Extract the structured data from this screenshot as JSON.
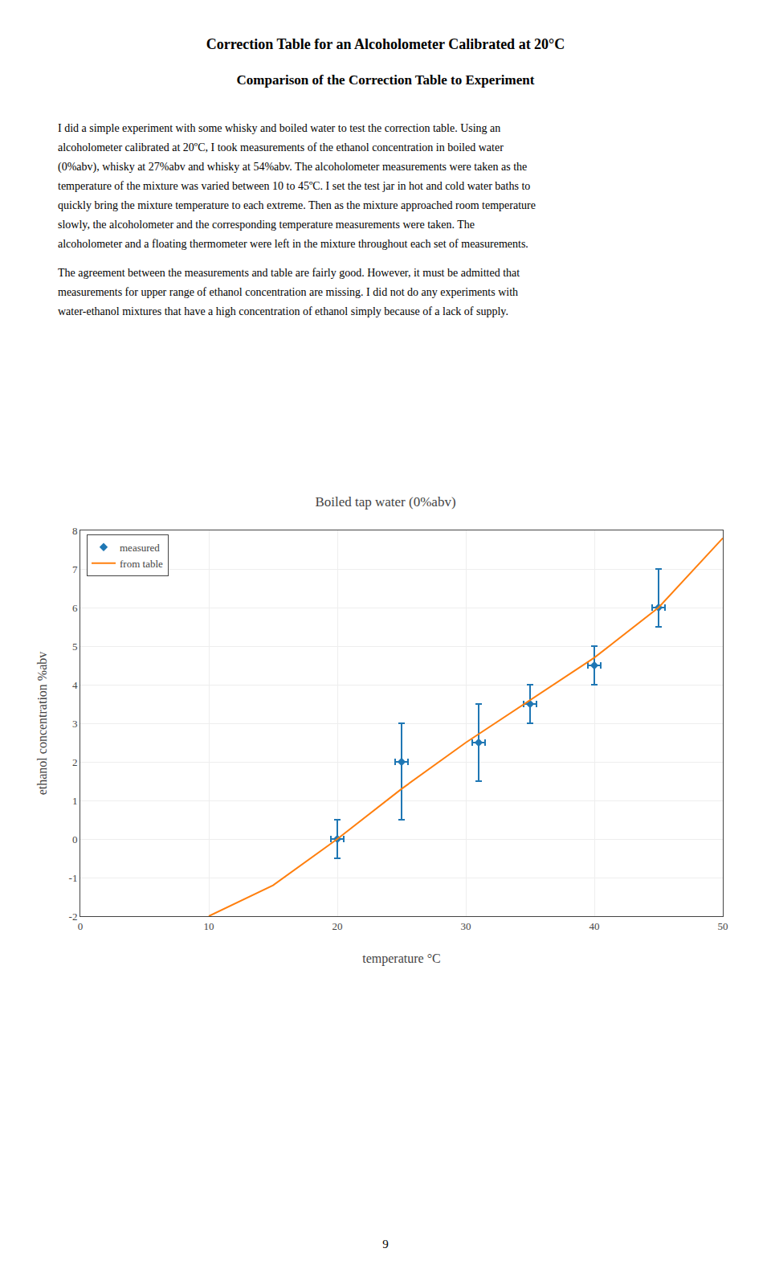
{
  "title": "Correction Table for an Alcoholometer Calibrated at 20°C",
  "subtitle": "Comparison of the Correction Table to Experiment",
  "paragraphs": [
    [
      "I did a simple experiment with some whisky and boiled water to test the correction table.  Using an",
      "alcoholometer calibrated at 20ºC, I took measurements of the ethanol concentration in boiled water",
      "(0%abv), whisky at 27%abv and whisky at 54%abv.  The alcoholometer measurements were taken as the",
      "temperature of the mixture was varied between 10 to 45ºC.  I set the test jar in hot and cold water baths to",
      "quickly bring the mixture temperature to each extreme.  Then as the mixture approached room temperature",
      "slowly, the alcoholometer and the corresponding temperature measurements were taken.  The",
      "alcoholometer and a floating thermometer were left in the mixture throughout each set of measurements."
    ],
    [
      "The agreement between the measurements and table are fairly good.  However, it must be admitted that",
      "measurements for upper range of ethanol concentration are missing.  I did not do any experiments with",
      "water-ethanol mixtures that have a high concentration of ethanol simply because of a lack of supply."
    ]
  ],
  "page_number": "9",
  "chart_data": {
    "type": "scatter",
    "title": "Boiled tap water (0%abv)",
    "xlabel": "temperature °C",
    "ylabel": "ethanol concentration %abv",
    "xlim": [
      0,
      50
    ],
    "ylim": [
      -2.0,
      8.0
    ],
    "xticks": [
      0,
      10,
      20,
      30,
      40,
      50
    ],
    "yticks": [
      -2,
      -1,
      0,
      1,
      2,
      3,
      4,
      5,
      6,
      7,
      8
    ],
    "grid": true,
    "legend": "upper left",
    "series": [
      {
        "name": "measured",
        "type": "scatter",
        "marker": "diamond",
        "x": [
          20,
          25,
          31,
          35,
          40,
          45
        ],
        "values": [
          0.0,
          2.0,
          2.5,
          3.5,
          4.5,
          6.0
        ],
        "xerr": [
          0.5,
          0.5,
          0.5,
          0.5,
          0.5,
          0.5
        ],
        "yerr_pos": [
          0.5,
          1.0,
          1.0,
          0.5,
          0.5,
          1.0
        ],
        "yerr_neg": [
          0.5,
          1.5,
          1.0,
          0.5,
          0.5,
          0.5
        ]
      },
      {
        "name": "from table",
        "type": "line",
        "line_style": "solid",
        "x": [
          10,
          15,
          20,
          25,
          30,
          35,
          40,
          45,
          50
        ],
        "values": [
          -2.0,
          -1.2,
          0.0,
          1.3,
          2.5,
          3.6,
          4.7,
          6.0,
          7.8
        ]
      }
    ]
  }
}
